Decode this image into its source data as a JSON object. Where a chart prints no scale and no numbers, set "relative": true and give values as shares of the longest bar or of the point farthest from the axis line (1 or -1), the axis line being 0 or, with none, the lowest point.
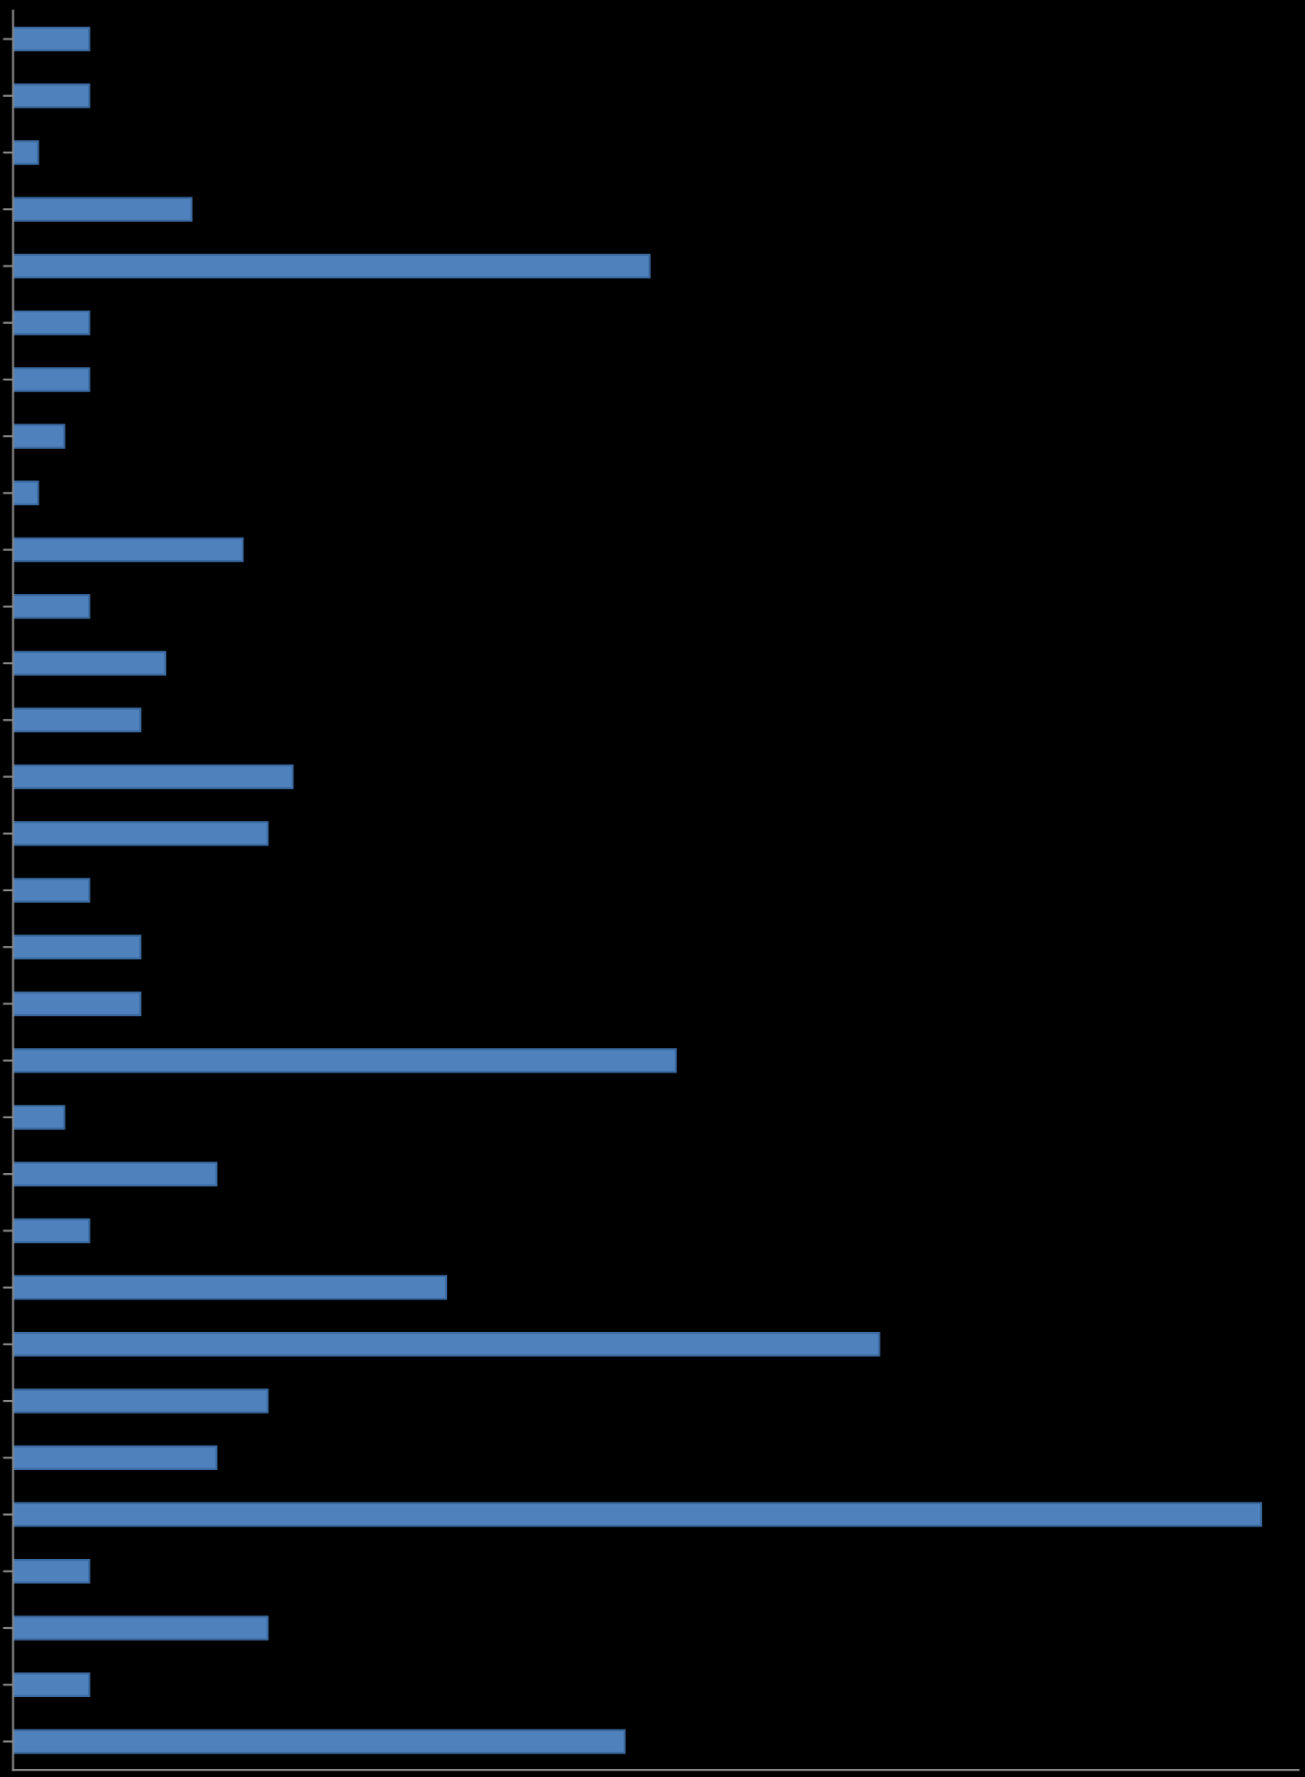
{
  "chart_data": {
    "type": "bar",
    "orientation": "horizontal",
    "relative": true,
    "color": "#4f81bd",
    "categories": [
      null,
      null,
      null,
      null,
      null,
      null,
      null,
      null,
      null,
      null,
      null,
      null,
      null,
      null,
      null,
      null,
      null,
      null,
      null,
      null,
      null,
      null,
      null,
      null,
      null,
      null,
      null,
      null,
      null,
      null,
      null
    ],
    "values": [
      0.061,
      0.061,
      0.02,
      0.143,
      0.51,
      0.061,
      0.061,
      0.041,
      0.02,
      0.184,
      0.061,
      0.122,
      0.102,
      0.224,
      0.204,
      0.061,
      0.102,
      0.102,
      0.531,
      0.041,
      0.163,
      0.061,
      0.347,
      0.694,
      0.204,
      0.163,
      1,
      0.061,
      0.204,
      0.061,
      0.49
    ],
    "grid": false,
    "legend": false
  }
}
